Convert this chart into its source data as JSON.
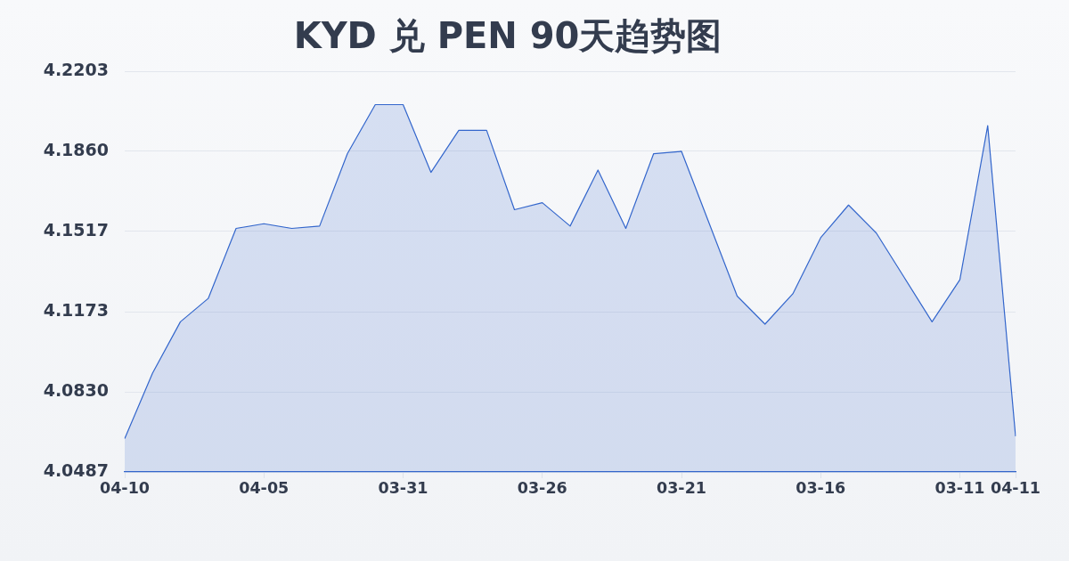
{
  "chart_data": {
    "type": "area",
    "title": "KYD 兑 PEN 90天趋势图",
    "categories": [
      "04-10",
      null,
      null,
      null,
      null,
      "04-05",
      null,
      null,
      null,
      null,
      "03-31",
      null,
      null,
      null,
      null,
      "03-26",
      null,
      null,
      null,
      null,
      "03-21",
      null,
      null,
      null,
      null,
      "03-16",
      null,
      null,
      null,
      null,
      "03-11",
      null,
      "04-11"
    ],
    "series": [
      {
        "color": "#3366cc",
        "values": [
          4.063,
          4.091,
          4.113,
          4.123,
          4.153,
          4.155,
          4.153,
          4.154,
          4.185,
          4.206,
          4.206,
          4.177,
          4.195,
          4.195,
          4.161,
          4.164,
          4.154,
          4.178,
          4.153,
          4.185,
          4.186,
          4.155,
          4.124,
          4.112,
          4.125,
          4.149,
          4.163,
          4.151,
          4.132,
          4.113,
          4.131,
          4.197,
          4.064
        ]
      }
    ],
    "ylim": [
      4.0487,
      4.2203
    ],
    "yticks": [
      4.0487,
      {
        "value": 4.083,
        "label": "4.0830"
      },
      4.1173,
      4.1517,
      {
        "value": 4.186,
        "label": "4.1860"
      },
      4.2203
    ],
    "grid": "y"
  }
}
